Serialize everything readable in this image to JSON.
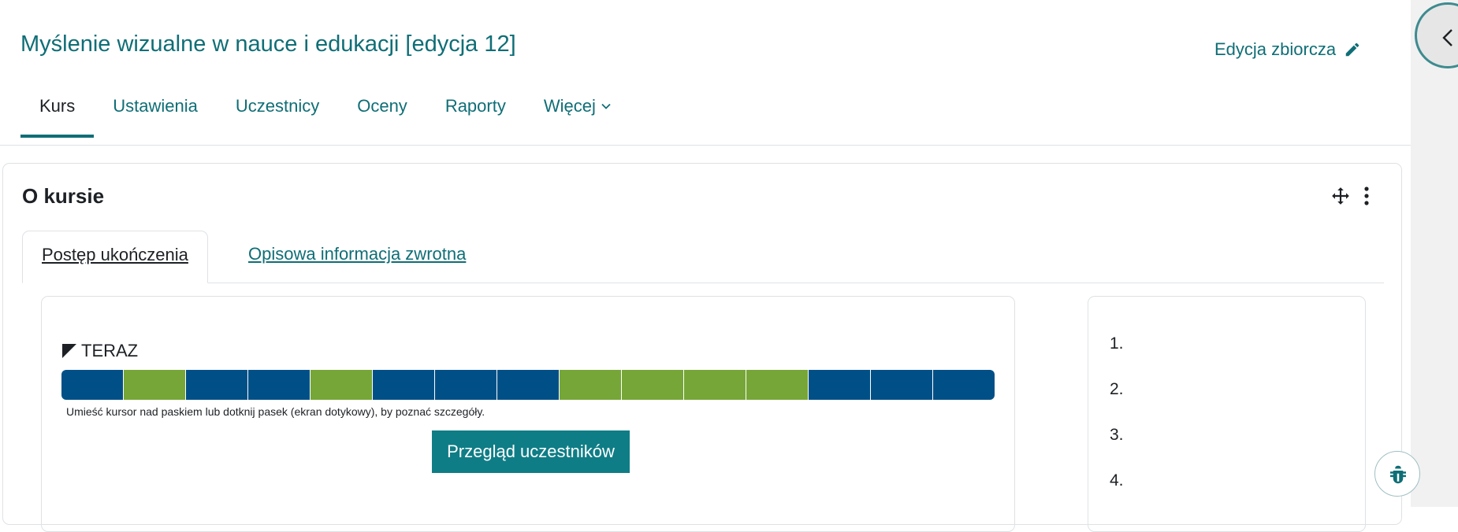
{
  "course": {
    "title": "Myślenie wizualne w nauce i edukacji [edycja 12]",
    "bulk_edit_label": "Edycja zbiorcza"
  },
  "nav": {
    "tabs": [
      {
        "label": "Kurs",
        "active": true
      },
      {
        "label": "Ustawienia"
      },
      {
        "label": "Uczestnicy"
      },
      {
        "label": "Oceny"
      },
      {
        "label": "Raporty"
      },
      {
        "label": "Więcej"
      }
    ]
  },
  "block": {
    "title": "O kursie",
    "tabs": [
      {
        "label": "Postęp ukończenia",
        "active": true
      },
      {
        "label": "Opisowa informacja zwrotna"
      }
    ],
    "progress": {
      "now_label": "TERAZ",
      "segments": [
        "incomplete",
        "complete",
        "incomplete",
        "incomplete",
        "complete",
        "incomplete",
        "incomplete",
        "incomplete",
        "complete",
        "complete",
        "complete",
        "complete",
        "incomplete",
        "incomplete",
        "incomplete"
      ],
      "hint": "Umieść kursor nad paskiem lub dotknij pasek (ekran dotykowy), by poznać szczegóły.",
      "button_label": "Przegląd uczestników"
    },
    "ranking": {
      "items": [
        "1.",
        "2.",
        "3.",
        "4."
      ]
    }
  },
  "colors": {
    "accent": "#0f6e76",
    "complete": "#76a637",
    "incomplete": "#005087",
    "button": "#0f7d86"
  },
  "icons": {
    "bulk_edit": "pencil-icon",
    "more": "chevron-down-icon",
    "move": "move-icon",
    "menu": "kebab-menu-icon",
    "drawer": "chevron-left-icon",
    "debug": "bug-icon"
  }
}
